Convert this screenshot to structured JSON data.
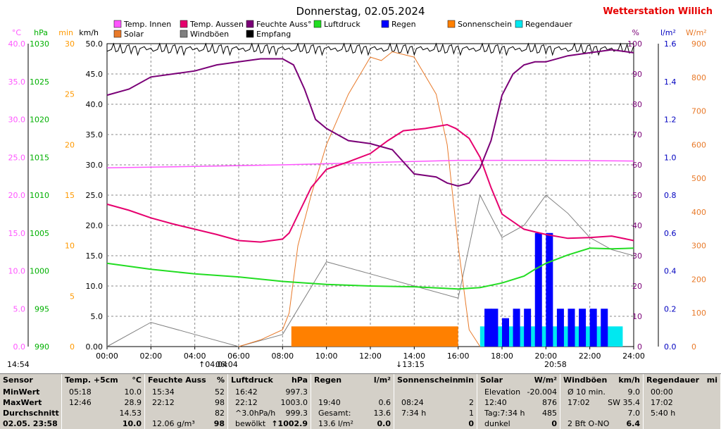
{
  "title": "Donnerstag, 02.05.2024",
  "station": "Wetterstation Willich",
  "colors": {
    "temp_in": "#ff55ff",
    "temp_out": "#e6006e",
    "humidity": "#7a0077",
    "pressure": "#22dd22",
    "rain": "#0000ff",
    "sunshine": "#ff8000",
    "solar": "#e87a2a",
    "gust": "#808080",
    "reception": "#000000",
    "rain_dur": "#00e8f0",
    "axis_pink": "#ff55ff",
    "axis_green": "#00b000",
    "axis_orange": "#ff9900",
    "axis_purple": "#7a0077",
    "axis_blue": "#0000c0",
    "axis_orange2": "#e87a2a",
    "title_red": "#e60000"
  },
  "axis_units": {
    "temp": "°C",
    "pressure": "hPa",
    "minutes": "min",
    "wind": "km/h",
    "percent": "%",
    "rain": "l/m²",
    "solar": "W/m²"
  },
  "markers": {
    "left_time": "14:54",
    "m1": "04:04",
    "m2": "06:04",
    "m3": "13:15",
    "m4": "20:58"
  },
  "chart_data": {
    "type": "line",
    "title": "Donnerstag, 02.05.2024",
    "x_ticks": [
      "00:00",
      "02:00",
      "04:00",
      "06:00",
      "08:00",
      "10:00",
      "12:00",
      "14:00",
      "16:00",
      "18:00",
      "20:00",
      "22:00",
      "24:00"
    ],
    "y_axes": {
      "temp": {
        "unit": "°C",
        "ticks": [
          "0.0",
          "5.0",
          "10.0",
          "15.0",
          "20.0",
          "25.0",
          "30.0",
          "35.0",
          "40.0"
        ]
      },
      "pressure": {
        "unit": "hPa",
        "ticks": [
          "990",
          "995",
          "1000",
          "1005",
          "1010",
          "1015",
          "1020",
          "1025",
          "1030"
        ]
      },
      "minutes": {
        "unit": "min",
        "ticks": [
          "0",
          "5",
          "10",
          "15",
          "20",
          "25",
          "30"
        ]
      },
      "wind": {
        "unit": "km/h",
        "ticks": [
          "0.00",
          "5.0",
          "10.0",
          "15.0",
          "20.0",
          "25.0",
          "30.0",
          "35.0",
          "40.0",
          "45.0",
          "50.0"
        ]
      },
      "percent": {
        "unit": "%",
        "ticks": [
          "0",
          "10",
          "20",
          "30",
          "40",
          "50",
          "60",
          "70",
          "80",
          "90",
          "100"
        ]
      },
      "rain": {
        "unit": "l/m²",
        "ticks": [
          "0.0",
          "0.2",
          "0.4",
          "0.6",
          "0.8",
          "1.0",
          "1.2",
          "1.4",
          "1.6"
        ]
      },
      "solar": {
        "unit": "W/m²",
        "ticks": [
          "0",
          "100",
          "200",
          "300",
          "400",
          "500",
          "600",
          "700",
          "800",
          "900"
        ]
      }
    },
    "legend": [
      "Temp. Innen",
      "Temp. Aussen",
      "Feuchte Auss°",
      "Luftdruck",
      "Regen",
      "Sonnenschein",
      "Solar",
      "Windböen",
      "Empfang",
      "Regendauer"
    ],
    "series": [
      {
        "name": "Temp. Innen",
        "axis": "temp",
        "x": [
          0,
          4,
          8,
          12,
          16,
          20,
          24
        ],
        "y": [
          23.6,
          23.8,
          24.0,
          24.3,
          24.6,
          24.6,
          24.5
        ]
      },
      {
        "name": "Temp. Aussen",
        "axis": "temp",
        "x": [
          0,
          1,
          2,
          3,
          4,
          5,
          6,
          7,
          8,
          8.3,
          8.8,
          9.3,
          10,
          11,
          12,
          12.8,
          13.5,
          14.5,
          15.5,
          15.9,
          16.5,
          17,
          17.5,
          18,
          19,
          20,
          21,
          22,
          23,
          24
        ],
        "y": [
          18.8,
          18.0,
          17.0,
          16.2,
          15.5,
          14.8,
          14.0,
          13.8,
          14.2,
          15.0,
          18.0,
          21.0,
          23.4,
          24.4,
          25.5,
          27.2,
          28.5,
          28.8,
          29.3,
          28.8,
          27.5,
          25.0,
          21.0,
          17.5,
          15.5,
          14.8,
          14.3,
          14.4,
          14.6,
          14.0
        ]
      },
      {
        "name": "Feuchte Auss°",
        "axis": "percent",
        "x": [
          0,
          1,
          2,
          3,
          4,
          5,
          6,
          7,
          8,
          8.5,
          9,
          9.5,
          10,
          11,
          12,
          13,
          14,
          15,
          15.5,
          16,
          16.5,
          17,
          17.5,
          18,
          18.5,
          19,
          19.5,
          20,
          21,
          22,
          23,
          24
        ],
        "y": [
          83,
          85,
          89,
          90,
          91,
          93,
          94,
          95,
          95,
          93,
          85,
          75,
          72,
          68,
          67,
          65,
          57,
          56,
          54,
          53,
          54,
          59,
          68,
          83,
          90,
          93,
          94,
          94,
          96,
          97,
          98,
          97
        ]
      },
      {
        "name": "Luftdruck",
        "axis": "pressure",
        "x": [
          0,
          1,
          2,
          4,
          6,
          8,
          10,
          12,
          14,
          16,
          17,
          18,
          19,
          19.5,
          20,
          21,
          22,
          23,
          24
        ],
        "y": [
          1001.0,
          1000.6,
          1000.2,
          999.6,
          999.2,
          998.6,
          998.2,
          998.0,
          997.9,
          997.6,
          997.8,
          998.4,
          999.3,
          1000.2,
          1001.0,
          1002.1,
          1003.0,
          1002.9,
          1003.0
        ]
      },
      {
        "name": "Solar",
        "axis": "solar",
        "x": [
          6.0,
          7,
          8,
          8.3,
          8.7,
          9.3,
          10,
          11,
          12,
          12.5,
          13,
          14,
          15,
          15.5,
          16,
          16.5,
          17
        ],
        "y": [
          0,
          20,
          50,
          100,
          300,
          450,
          600,
          750,
          860,
          850,
          876,
          860,
          750,
          600,
          300,
          50,
          0
        ]
      },
      {
        "name": "Windböen",
        "axis": "wind",
        "x": [
          0,
          2,
          4,
          6,
          8,
          10,
          12,
          14,
          16,
          17,
          18,
          19,
          20,
          21,
          22,
          23,
          24
        ],
        "y": [
          0,
          4,
          2,
          0,
          2,
          14,
          12,
          10,
          8,
          25,
          18,
          20,
          25,
          22,
          18,
          16,
          15
        ]
      },
      {
        "name": "Sonnenschein",
        "axis": "minutes",
        "x_start": 8.4,
        "x_end": 16.0,
        "value": 2
      },
      {
        "name": "Regendauer",
        "axis": "minutes",
        "x_start": 17.0,
        "x_end": 23.5,
        "value": 2
      },
      {
        "name": "Regen",
        "axis": "rain",
        "x": [
          17.2,
          17.5,
          18,
          18.5,
          19,
          19.5,
          20,
          20.5,
          21,
          21.5,
          22,
          22.5
        ],
        "y": [
          0.2,
          0.2,
          0.15,
          0.2,
          0.2,
          0.6,
          0.6,
          0.2,
          0.2,
          0.2,
          0.2,
          0.2
        ]
      }
    ]
  },
  "table": {
    "sensor": {
      "head": "Sensor",
      "rows": [
        "MinWert",
        "MaxWert",
        "Durchschnitt",
        "02.05. 23:58"
      ]
    },
    "temp": {
      "head": "Temp. +5cm",
      "unit": "°C",
      "rows": [
        [
          "05:18",
          "10.0"
        ],
        [
          "12:46",
          "28.9"
        ],
        [
          "",
          "14.53"
        ],
        [
          "",
          "10.0"
        ]
      ]
    },
    "humid": {
      "head": "Feuchte Auss",
      "unit": "%",
      "rows": [
        [
          "15:34",
          "52"
        ],
        [
          "22:12",
          "98"
        ],
        [
          "",
          "82"
        ],
        [
          "12.06 g/m³",
          "98"
        ]
      ]
    },
    "press": {
      "head": "Luftdruck",
      "unit": "hPa",
      "rows": [
        [
          "16:42",
          "997.3"
        ],
        [
          "22:12",
          "1003.0"
        ],
        [
          "^3.0hPa/h",
          "999.3"
        ],
        [
          "bewölkt",
          "↑1002.9"
        ]
      ]
    },
    "rain": {
      "head": "Regen",
      "unit": "l/m²",
      "rows": [
        [
          "",
          ""
        ],
        [
          "19:40",
          "0.6"
        ],
        [
          "Gesamt:",
          "13.6"
        ],
        [
          "13.6 l/m²",
          "0.0"
        ]
      ]
    },
    "sun": {
      "head": "Sonnenschein",
      "unit": "min",
      "rows": [
        [
          "",
          ""
        ],
        [
          "08:24",
          "2"
        ],
        [
          "7:34 h",
          "1"
        ],
        [
          "",
          "0"
        ]
      ]
    },
    "solar": {
      "head": "Solar",
      "unit": "W/m²",
      "rows": [
        [
          "Elevation",
          "-20.004"
        ],
        [
          "12:40",
          "876"
        ],
        [
          "Tag:7:34 h",
          "485"
        ],
        [
          "dunkel",
          "0"
        ]
      ]
    },
    "wind": {
      "head": "Windböen",
      "unit": "km/h",
      "rows": [
        [
          "Ø 10 min.",
          "9.0"
        ],
        [
          "17:02",
          "SW 35.4"
        ],
        [
          "",
          "7.0"
        ],
        [
          "2 Bft O-NO",
          "6.4"
        ]
      ]
    },
    "raindur": {
      "head": "Regendauer",
      "unit": "mi",
      "rows": [
        [
          "00:00",
          ""
        ],
        [
          "17:02",
          ""
        ],
        [
          "5:40 h",
          ""
        ],
        [
          "",
          ""
        ]
      ]
    }
  }
}
